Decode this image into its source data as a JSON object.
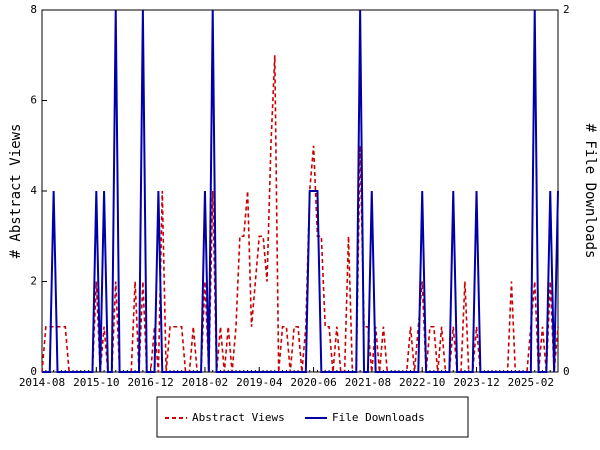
{
  "chart_data": {
    "type": "line",
    "categories": [
      "2014-08",
      null,
      null,
      null,
      null,
      null,
      null,
      null,
      null,
      null,
      null,
      null,
      null,
      null,
      "2015-10",
      null,
      null,
      null,
      null,
      null,
      null,
      null,
      null,
      null,
      null,
      null,
      null,
      null,
      "2016-12",
      null,
      null,
      null,
      null,
      null,
      null,
      null,
      null,
      null,
      null,
      null,
      null,
      null,
      "2018-02",
      null,
      null,
      null,
      null,
      null,
      null,
      null,
      null,
      null,
      null,
      null,
      null,
      null,
      "2019-04",
      null,
      null,
      null,
      null,
      null,
      null,
      null,
      null,
      null,
      null,
      null,
      null,
      null,
      "2020-06",
      null,
      null,
      null,
      null,
      null,
      null,
      null,
      null,
      null,
      null,
      null,
      null,
      null,
      "2021-08",
      null,
      null,
      null,
      null,
      null,
      null,
      null,
      null,
      null,
      null,
      null,
      null,
      null,
      "2022-10",
      null,
      null,
      null,
      null,
      null,
      null,
      null,
      null,
      null,
      null,
      null,
      null,
      null,
      "2023-12",
      null,
      null,
      null,
      null,
      null,
      null,
      null,
      null,
      null,
      null,
      null,
      null,
      null,
      "2025-02",
      null,
      null,
      null,
      null,
      null,
      null,
      null
    ],
    "ylabel": "# Abstract Views",
    "y2label": "# File Downloads",
    "ylim": [
      0,
      8
    ],
    "yticks": [
      0,
      2,
      4,
      6,
      8
    ],
    "y2lim": [
      0,
      2
    ],
    "y2ticks": [
      0,
      2
    ],
    "legend": "bottom",
    "series": [
      {
        "name": "Abstract Views",
        "color": "#cc0000",
        "dash": true,
        "values": [
          0,
          1,
          1,
          1,
          1,
          1,
          1,
          0,
          0,
          0,
          0,
          0,
          0,
          0,
          2,
          0,
          1,
          0,
          0,
          2,
          0,
          0,
          0,
          0,
          2,
          0,
          2,
          0,
          0,
          1,
          0,
          4,
          0,
          1,
          1,
          1,
          1,
          0,
          0,
          1,
          0,
          0,
          2,
          0,
          4,
          0,
          1,
          0,
          1,
          0,
          1,
          3,
          3,
          4,
          1,
          2,
          3,
          3,
          2,
          5,
          7,
          0,
          1,
          1,
          0,
          1,
          1,
          0,
          1,
          4,
          5,
          3,
          3,
          1,
          1,
          0,
          1,
          0,
          0,
          3,
          0,
          0,
          5,
          1,
          1,
          0,
          1,
          0,
          1,
          0,
          0,
          0,
          0,
          0,
          0,
          1,
          0,
          1,
          2,
          0,
          1,
          1,
          0,
          1,
          0,
          0,
          1,
          0,
          0,
          2,
          0,
          0,
          1,
          0,
          0,
          0,
          0,
          0,
          0,
          0,
          0,
          2,
          0,
          0,
          0,
          0,
          1,
          2,
          0,
          1,
          0,
          2,
          0,
          1
        ]
      },
      {
        "name": "File Downloads",
        "color": "#0000aa",
        "axis": "y2",
        "values": [
          0,
          0,
          0,
          1,
          0,
          0,
          0,
          0,
          0,
          0,
          0,
          0,
          0,
          0,
          1,
          0,
          1,
          0,
          0,
          2,
          0,
          0,
          0,
          0,
          0,
          0,
          2,
          0,
          0,
          0,
          1,
          0,
          0,
          0,
          0,
          0,
          0,
          0,
          0,
          0,
          0,
          0,
          1,
          0,
          2,
          0,
          0,
          0,
          0,
          0,
          0,
          0,
          0,
          0,
          0,
          0,
          0,
          0,
          0,
          0,
          0,
          0,
          0,
          0,
          0,
          0,
          0,
          0,
          0,
          1,
          1,
          1,
          0,
          0,
          0,
          0,
          0,
          0,
          0,
          0,
          0,
          0,
          2,
          0,
          0,
          1,
          0,
          0,
          0,
          0,
          0,
          0,
          0,
          0,
          0,
          0,
          0,
          0,
          1,
          0,
          0,
          0,
          0,
          0,
          0,
          0,
          1,
          0,
          0,
          0,
          0,
          0,
          1,
          0,
          0,
          0,
          0,
          0,
          0,
          0,
          0,
          0,
          0,
          0,
          0,
          0,
          0,
          2,
          0,
          0,
          0,
          1,
          0,
          1
        ]
      }
    ]
  }
}
